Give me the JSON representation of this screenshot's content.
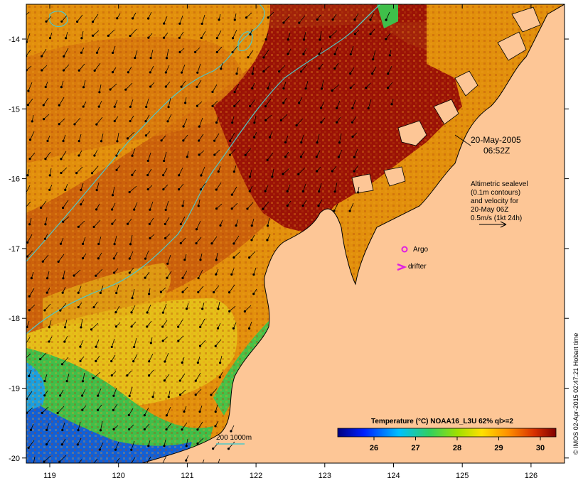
{
  "map": {
    "x_ticks": [
      "119",
      "120",
      "121",
      "122",
      "123",
      "124",
      "125",
      "126"
    ],
    "y_ticks": [
      "-14",
      "-15",
      "-16",
      "-17",
      "-18",
      "-19",
      "-20"
    ]
  },
  "annotations": {
    "date": "20-May-2005",
    "time": "06:52Z",
    "altimetry_lines": [
      "Altimetric sealevel",
      "(0.1m contours)",
      "and velocity for",
      "20-May 06Z",
      "0.5m/s (1kt 24h)"
    ],
    "argo_label": "Argo",
    "drifter_label": "drifter",
    "bathymetry_label": "200  1000m"
  },
  "colorbar": {
    "title": "Temperature (°C) NOAA16_L3U 62% ql>=2",
    "ticks": [
      "26",
      "27",
      "28",
      "29",
      "30"
    ]
  },
  "credit": "© IMOS 02-Apr-2015 02:47:21 Hobart time",
  "colors": {
    "land": "#fdc696",
    "warm_dark": "#9b1206",
    "warm": "#c85a0c",
    "mid": "#e2900c",
    "cool_yellow": "#e6c419",
    "cool_green": "#3fbf4a",
    "cool_blue": "#1060d8",
    "contour": "#4ec9c9",
    "argo": "#e020e0"
  }
}
